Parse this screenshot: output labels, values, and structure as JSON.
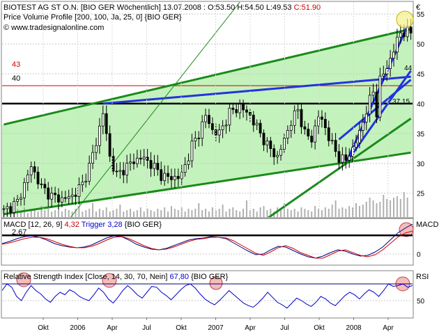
{
  "chart_data": [
    {
      "type": "candlestick",
      "panel": "price",
      "title": "BIOTEST AG ST O.N. [BIO GER  Wöchentlich] 13.07.2008 : O:53.50 H:54.50 L:49.53 C:51.90",
      "title_parts": {
        "name": "BIOTEST AG ST O.N. [BIO GER  Wöchentlich] 13.07.2008 : O:53.50 H:54.50 L:49.53 ",
        "close": "C:51.90"
      },
      "indicator_label": "Price Volume Profile [200, 100, Ja, 25, 0] {BIO GER}",
      "copyright": "© www.tradesignalonline.com",
      "currency": "€",
      "ylim": [
        21,
        57
      ],
      "y_ticks": [
        25,
        30,
        35,
        40,
        45,
        50,
        55
      ],
      "level_labels": [
        {
          "text": "43",
          "value": 43,
          "color": "#cc0000"
        },
        {
          "text": "40",
          "value": 40,
          "color": "#000000"
        }
      ],
      "right_labels": [
        {
          "text": "44",
          "value": 43.6
        },
        {
          "text": "37,15",
          "value": 37.15
        }
      ],
      "x_labels": [
        "Okt",
        "2006",
        "Apr",
        "Jul",
        "Okt",
        "2007",
        "Apr",
        "Jul",
        "Okt",
        "2008",
        "Apr"
      ],
      "weekly_close_points": [
        [
          0,
          22.0
        ],
        [
          4,
          23.5
        ],
        [
          8,
          29.5
        ],
        [
          11,
          26.0
        ],
        [
          14,
          24.5
        ],
        [
          17,
          24.0
        ],
        [
          20,
          24.5
        ],
        [
          23,
          26.5
        ],
        [
          25,
          29.5
        ],
        [
          27,
          33.5
        ],
        [
          29,
          38.5
        ],
        [
          31,
          31.0
        ],
        [
          33,
          28.0
        ],
        [
          35,
          29.0
        ],
        [
          37,
          30.0
        ],
        [
          40,
          31.0
        ],
        [
          43,
          30.0
        ],
        [
          46,
          28.0
        ],
        [
          49,
          27.5
        ],
        [
          52,
          28.0
        ],
        [
          55,
          33.0
        ],
        [
          57,
          35.0
        ],
        [
          59,
          38.0
        ],
        [
          61,
          35.5
        ],
        [
          63,
          35.0
        ],
        [
          66,
          38.5
        ],
        [
          69,
          39.5
        ],
        [
          72,
          38.0
        ],
        [
          74,
          36.0
        ],
        [
          77,
          33.0
        ],
        [
          80,
          31.0
        ],
        [
          82,
          34.0
        ],
        [
          84,
          37.0
        ],
        [
          86,
          39.0
        ],
        [
          88,
          35.0
        ],
        [
          90,
          34.0
        ],
        [
          92,
          38.0
        ],
        [
          94,
          36.0
        ],
        [
          96,
          33.0
        ],
        [
          98,
          31.0
        ],
        [
          100,
          30.5
        ],
        [
          102,
          32.5
        ],
        [
          104,
          35.0
        ],
        [
          106,
          39.0
        ],
        [
          108,
          42.0
        ],
        [
          109,
          38.5
        ],
        [
          110,
          44.0
        ],
        [
          112,
          46.0
        ],
        [
          114,
          49.0
        ],
        [
          116,
          52.0
        ],
        [
          118,
          51.9
        ]
      ],
      "volume_relative": [
        0.3,
        0.25,
        0.5,
        0.2,
        0.3,
        0.2,
        0.35,
        0.15,
        0.25,
        0.3,
        0.2,
        0.4,
        0.25,
        0.3,
        0.2,
        0.25,
        0.35,
        0.2,
        0.3,
        0.25,
        0.2,
        0.3,
        0.4,
        0.2,
        0.25,
        0.3,
        0.5,
        0.2,
        0.3,
        0.25,
        0.35,
        0.2,
        0.25,
        0.3,
        0.45,
        0.2,
        0.25,
        0.3,
        0.2,
        0.25,
        0.35,
        0.2,
        0.3,
        0.25,
        0.2,
        0.3,
        0.25,
        0.35,
        0.2,
        0.4,
        0.3,
        0.25,
        0.35,
        0.2,
        0.3,
        0.25,
        0.3,
        0.5,
        0.25,
        0.3,
        0.2,
        0.35,
        0.25,
        0.3,
        0.45,
        0.2,
        0.3,
        0.35,
        0.25,
        0.2,
        0.3,
        0.6,
        0.25,
        0.3,
        0.2,
        0.35,
        0.4,
        0.25,
        0.3,
        0.2,
        0.35,
        0.25,
        0.5,
        0.3,
        0.25,
        0.3,
        0.2,
        0.35,
        0.3,
        0.25,
        0.2,
        0.4,
        0.3,
        0.25,
        0.35,
        0.3,
        0.45,
        0.6,
        0.3,
        0.35,
        0.3,
        0.4,
        0.35,
        0.5,
        0.4,
        0.45,
        0.55,
        0.7,
        0.6,
        0.5,
        0.55,
        0.8,
        0.65,
        0.6,
        0.7,
        0.75,
        0.65,
        0.9,
        0.7
      ],
      "trend_lines": [
        {
          "name": "upper channel",
          "color": "#1a8a1a",
          "points": [
            [
              0,
              36.5
            ],
            [
              119,
              52.5
            ]
          ]
        },
        {
          "name": "lower channel",
          "color": "#1a8a1a",
          "points": [
            [
              0,
              21.5
            ],
            [
              119,
              31.8
            ]
          ]
        },
        {
          "name": "blue 1",
          "color": "#2233dd",
          "points": [
            [
              29,
              40.0
            ],
            [
              119,
              44.5
            ]
          ]
        },
        {
          "name": "blue 2",
          "color": "#2233dd",
          "points": [
            [
              100,
              30.0
            ],
            [
              119,
              45.5
            ]
          ]
        },
        {
          "name": "blue 3",
          "color": "#2233dd",
          "points": [
            [
              100,
              30.0
            ],
            [
              118,
              53.0
            ]
          ]
        },
        {
          "name": "blue 4",
          "color": "#2233dd",
          "points": [
            [
              98,
              34.0
            ],
            [
              119,
              44.0
            ]
          ]
        },
        {
          "name": "green rising",
          "color": "#1a8a1a",
          "points": [
            [
              60,
              14.0
            ],
            [
              119,
              37.5
            ]
          ]
        },
        {
          "name": "thin green",
          "color": "#1a8a1a",
          "points": [
            [
              10,
              14.0
            ],
            [
              69,
              57.0
            ]
          ]
        }
      ]
    },
    {
      "type": "line",
      "panel": "macd",
      "label": "MACD [12, 26, 9] ",
      "macd_value_text": "4,32",
      "trigger_text": "Trigger 3,28",
      "source_text": " {BIO GER}",
      "right_label": "MACD",
      "level_label": "2,67",
      "ylim": [
        -1.5,
        5.0
      ],
      "y_ticks": [
        0
      ],
      "series": [
        {
          "name": "MACD",
          "color": "#000080",
          "values": [
            1.5,
            1.8,
            2.2,
            2.5,
            2.6,
            2.4,
            2.0,
            1.5,
            1.2,
            1.0,
            0.9,
            1.0,
            1.3,
            1.8,
            2.3,
            2.6,
            2.5,
            2.0,
            1.4,
            1.0,
            0.7,
            0.6,
            0.8,
            1.2,
            1.6,
            2.0,
            2.2,
            2.3,
            2.5,
            2.4,
            2.2,
            1.6,
            1.0,
            0.4,
            -0.1,
            0.0,
            0.6,
            1.1,
            1.0,
            0.5,
            0.0,
            -0.4,
            -0.6,
            -0.3,
            0.2,
            0.6,
            0.4,
            0.0,
            -0.3,
            -0.2,
            0.3,
            1.0,
            2.0,
            3.0,
            3.7,
            4.3
          ]
        },
        {
          "name": "Trigger",
          "color": "#cc0000",
          "values": [
            1.4,
            1.6,
            1.9,
            2.2,
            2.4,
            2.4,
            2.2,
            1.8,
            1.4,
            1.1,
            0.9,
            0.9,
            1.1,
            1.5,
            2.0,
            2.4,
            2.5,
            2.2,
            1.7,
            1.2,
            0.8,
            0.6,
            0.7,
            1.0,
            1.4,
            1.8,
            2.1,
            2.2,
            2.4,
            2.4,
            2.3,
            1.9,
            1.3,
            0.7,
            0.1,
            -0.2,
            0.3,
            0.9,
            1.2,
            0.8,
            0.2,
            -0.2,
            -0.6,
            -0.6,
            -0.1,
            0.4,
            0.6,
            0.2,
            -0.2,
            -0.4,
            -0.1,
            0.6,
            1.5,
            2.4,
            3.0,
            3.3
          ]
        }
      ]
    },
    {
      "type": "line",
      "panel": "rsi",
      "label": "Relative Strength Index [Close, 14, 30, 70, Nein] ",
      "value_text": "67,80",
      "source_text": " {BIO GER}",
      "right_label": "RSI",
      "ylim": [
        30,
        85
      ],
      "y_ticks": [
        50
      ],
      "level": 70,
      "series": [
        {
          "name": "RSI",
          "color": "#0000cc",
          "values": [
            62,
            70,
            66,
            55,
            50,
            60,
            68,
            62,
            58,
            52,
            48,
            55,
            60,
            57,
            63,
            60,
            55,
            52,
            50,
            57,
            65,
            60,
            52,
            47,
            54,
            62,
            68,
            63,
            57,
            53,
            60,
            67,
            66,
            60,
            56,
            51,
            57,
            63,
            68,
            70,
            65,
            58,
            52,
            48,
            45,
            50,
            56,
            62,
            57,
            52,
            47,
            44,
            42,
            47,
            53,
            60,
            54,
            48,
            45,
            41,
            47,
            53,
            50,
            46,
            43,
            48,
            55,
            52,
            47,
            44,
            50,
            56,
            60,
            57,
            52,
            58,
            63,
            60,
            55,
            62,
            70,
            67,
            68,
            70,
            66,
            68
          ]
        }
      ]
    }
  ]
}
